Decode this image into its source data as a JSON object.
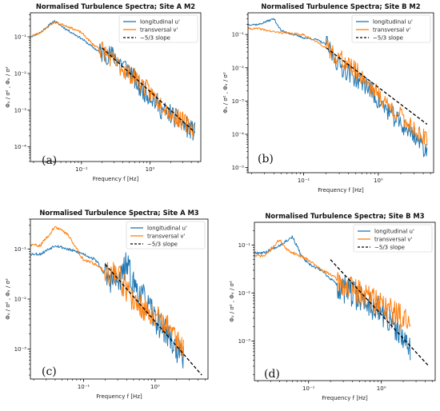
{
  "colors": {
    "longitudinal": "#1f77b4",
    "transversal": "#ff7f0e",
    "slope": "#000000"
  },
  "chart_data": [
    {
      "type": "line",
      "panel": "(a)",
      "title": "Normalised Turbulence Spectra; Site A M2",
      "xlabel": "Frequency  f  [Hz]",
      "ylabel": "Φᵤ / σ² , Φᵥ / σ²",
      "xscale": "log",
      "yscale": "log",
      "xlim": [
        0.018,
        5.5
      ],
      "ylim": [
        4e-05,
        0.45
      ],
      "xticks": [
        {
          "v": 0.1,
          "label": "10⁻¹"
        },
        {
          "v": 1,
          "label": "10⁰"
        }
      ],
      "yticks": [
        {
          "v": 0.0001,
          "label": "10⁻⁴"
        },
        {
          "v": 0.001,
          "label": "10⁻³"
        },
        {
          "v": 0.01,
          "label": "10⁻²"
        },
        {
          "v": 0.1,
          "label": "10⁻¹"
        }
      ],
      "legend": {
        "position": "top-right",
        "entries": [
          "longitudinal u'",
          "transversal v'",
          "−5/3 slope"
        ]
      },
      "series": [
        {
          "name": "longitudinal u'",
          "style": "solid",
          "seed": 11,
          "noise": 0.28,
          "fstart": 0.18,
          "anchors": [
            [
              0.018,
              0.1
            ],
            [
              0.025,
              0.13
            ],
            [
              0.04,
              0.27
            ],
            [
              0.06,
              0.16
            ],
            [
              0.1,
              0.09
            ],
            [
              0.15,
              0.05
            ],
            [
              0.2,
              0.035
            ],
            [
              0.3,
              0.03
            ],
            [
              0.5,
              0.012
            ],
            [
              0.7,
              0.004
            ],
            [
              1,
              0.0025
            ],
            [
              1.5,
              0.001
            ],
            [
              2,
              0.0008
            ],
            [
              3,
              0.0004
            ],
            [
              4.5,
              0.00025
            ]
          ]
        },
        {
          "name": "transversal v'",
          "style": "solid",
          "seed": 23,
          "noise": 0.26,
          "fstart": 0.18,
          "anchors": [
            [
              0.018,
              0.1
            ],
            [
              0.025,
              0.13
            ],
            [
              0.04,
              0.25
            ],
            [
              0.06,
              0.2
            ],
            [
              0.1,
              0.13
            ],
            [
              0.15,
              0.06
            ],
            [
              0.2,
              0.045
            ],
            [
              0.3,
              0.02
            ],
            [
              0.5,
              0.01
            ],
            [
              0.7,
              0.006
            ],
            [
              1,
              0.003
            ],
            [
              1.5,
              0.0015
            ],
            [
              2,
              0.0008
            ],
            [
              3,
              0.0005
            ],
            [
              4.5,
              0.0003
            ]
          ]
        },
        {
          "name": "−5/3 slope",
          "style": "dashed",
          "x": [
            0.2,
            4.5
          ],
          "y": [
            0.05,
            0.00025
          ]
        }
      ]
    },
    {
      "type": "line",
      "panel": "(b)",
      "title": "Normalised Turbulence Spectra; Site B M2",
      "xlabel": "Frequency  f  [Hz]",
      "ylabel": "Φᵤ / σ² , Φᵥ / σ²",
      "xscale": "log",
      "yscale": "log",
      "xlim": [
        0.018,
        5.5
      ],
      "ylim": [
        7e-06,
        0.45
      ],
      "xticks": [
        {
          "v": 0.1,
          "label": "10⁻¹"
        },
        {
          "v": 1,
          "label": "10⁰"
        }
      ],
      "yticks": [
        {
          "v": 1e-05,
          "label": "10⁻⁵"
        },
        {
          "v": 0.0001,
          "label": "10⁻⁴"
        },
        {
          "v": 0.001,
          "label": "10⁻³"
        },
        {
          "v": 0.01,
          "label": "10⁻²"
        },
        {
          "v": 0.1,
          "label": "10⁻¹"
        }
      ],
      "legend": {
        "position": "top-right",
        "entries": [
          "longitudinal u'",
          "transversal v'",
          "−5/3 slope"
        ]
      },
      "series": [
        {
          "name": "longitudinal u'",
          "style": "solid",
          "seed": 37,
          "noise": 0.3,
          "fstart": 0.2,
          "anchors": [
            [
              0.018,
              0.2
            ],
            [
              0.025,
              0.2
            ],
            [
              0.04,
              0.3
            ],
            [
              0.05,
              0.13
            ],
            [
              0.1,
              0.08
            ],
            [
              0.15,
              0.07
            ],
            [
              0.2,
              0.05
            ],
            [
              0.3,
              0.012
            ],
            [
              0.5,
              0.005
            ],
            [
              0.7,
              0.003
            ],
            [
              1,
              0.001
            ],
            [
              1.5,
              0.0004
            ],
            [
              2,
              0.0002
            ],
            [
              3,
              0.0001
            ],
            [
              4.5,
              3e-05
            ]
          ]
        },
        {
          "name": "transversal v'",
          "style": "solid",
          "seed": 41,
          "noise": 0.28,
          "fstart": 0.2,
          "anchors": [
            [
              0.018,
              0.15
            ],
            [
              0.025,
              0.15
            ],
            [
              0.04,
              0.12
            ],
            [
              0.06,
              0.11
            ],
            [
              0.1,
              0.1
            ],
            [
              0.15,
              0.06
            ],
            [
              0.2,
              0.04
            ],
            [
              0.3,
              0.02
            ],
            [
              0.5,
              0.008
            ],
            [
              0.7,
              0.004
            ],
            [
              1,
              0.0015
            ],
            [
              1.5,
              0.0006
            ],
            [
              2,
              0.00035
            ],
            [
              3,
              0.00015
            ],
            [
              4.5,
              6e-05
            ]
          ]
        },
        {
          "name": "−5/3 slope",
          "style": "dashed",
          "x": [
            0.2,
            4.5
          ],
          "y": [
            0.04,
            0.0002
          ]
        }
      ]
    },
    {
      "type": "line",
      "panel": "(c)",
      "title": "Normalised Turbulence Spectra; Site A M3",
      "xlabel": "Frequency  f  [Hz]",
      "ylabel": "Φᵤ / σ² , Φᵥ / σ²",
      "xscale": "log",
      "yscale": "log",
      "xlim": [
        0.018,
        5.5
      ],
      "ylim": [
        0.00025,
        0.4
      ],
      "xticks": [
        {
          "v": 0.1,
          "label": "10⁻¹"
        },
        {
          "v": 1,
          "label": "10⁰"
        }
      ],
      "yticks": [
        {
          "v": 0.001,
          "label": "10⁻³"
        },
        {
          "v": 0.01,
          "label": "10⁻²"
        },
        {
          "v": 0.1,
          "label": "10⁻¹"
        }
      ],
      "legend": {
        "position": "top-right",
        "entries": [
          "longitudinal u'",
          "transversal v'",
          "−5/3 slope"
        ]
      },
      "series": [
        {
          "name": "longitudinal u'",
          "style": "solid",
          "seed": 53,
          "noise": 0.28,
          "fstart": 0.2,
          "xend": 2.5,
          "anchors": [
            [
              0.018,
              0.08
            ],
            [
              0.025,
              0.08
            ],
            [
              0.04,
              0.12
            ],
            [
              0.06,
              0.1
            ],
            [
              0.1,
              0.08
            ],
            [
              0.15,
              0.06
            ],
            [
              0.2,
              0.03
            ],
            [
              0.3,
              0.02
            ],
            [
              0.4,
              0.05
            ],
            [
              0.5,
              0.02
            ],
            [
              0.7,
              0.01
            ],
            [
              1,
              0.004
            ],
            [
              1.5,
              0.002
            ],
            [
              2,
              0.001
            ],
            [
              2.5,
              0.0006
            ]
          ]
        },
        {
          "name": "transversal v'",
          "style": "solid",
          "seed": 59,
          "noise": 0.26,
          "fstart": 0.2,
          "xend": 2.5,
          "anchors": [
            [
              0.018,
              0.12
            ],
            [
              0.025,
              0.12
            ],
            [
              0.04,
              0.28
            ],
            [
              0.06,
              0.2
            ],
            [
              0.1,
              0.06
            ],
            [
              0.15,
              0.05
            ],
            [
              0.2,
              0.035
            ],
            [
              0.3,
              0.03
            ],
            [
              0.4,
              0.015
            ],
            [
              0.5,
              0.01
            ],
            [
              0.7,
              0.006
            ],
            [
              1,
              0.005
            ],
            [
              1.5,
              0.003
            ],
            [
              2,
              0.0015
            ],
            [
              2.5,
              0.001
            ]
          ]
        },
        {
          "name": "−5/3 slope",
          "style": "dashed",
          "x": [
            0.2,
            4.5
          ],
          "y": [
            0.05,
            0.0003
          ]
        }
      ]
    },
    {
      "type": "line",
      "panel": "(d)",
      "title": "Normalised Turbulence Spectra; Site B M3",
      "xlabel": "Frequency  f  [Hz]",
      "ylabel": "Φᵤ / σ² , Φᵥ / σ²",
      "xscale": "log",
      "yscale": "log",
      "xlim": [
        0.018,
        5.5
      ],
      "ylim": [
        0.00015,
        0.3
      ],
      "xticks": [
        {
          "v": 0.1,
          "label": "10⁻¹"
        },
        {
          "v": 1,
          "label": "10⁰"
        }
      ],
      "yticks": [
        {
          "v": 0.001,
          "label": "10⁻³"
        },
        {
          "v": 0.01,
          "label": "10⁻²"
        },
        {
          "v": 0.1,
          "label": "10⁻¹"
        }
      ],
      "legend": {
        "position": "top-right",
        "entries": [
          "longitudinal u'",
          "transversal v'",
          "−5/3 slope"
        ]
      },
      "series": [
        {
          "name": "longitudinal u'",
          "style": "solid",
          "seed": 67,
          "noise": 0.3,
          "fstart": 0.25,
          "xend": 2.5,
          "anchors": [
            [
              0.018,
              0.07
            ],
            [
              0.025,
              0.07
            ],
            [
              0.04,
              0.1
            ],
            [
              0.06,
              0.15
            ],
            [
              0.08,
              0.06
            ],
            [
              0.1,
              0.04
            ],
            [
              0.15,
              0.03
            ],
            [
              0.2,
              0.02
            ],
            [
              0.3,
              0.012
            ],
            [
              0.5,
              0.008
            ],
            [
              0.7,
              0.006
            ],
            [
              1,
              0.004
            ],
            [
              1.5,
              0.002
            ],
            [
              2,
              0.001
            ],
            [
              2.5,
              0.0008
            ]
          ]
        },
        {
          "name": "transversal v'",
          "style": "solid",
          "seed": 71,
          "noise": 0.28,
          "fstart": 0.25,
          "xend": 2.5,
          "anchors": [
            [
              0.018,
              0.06
            ],
            [
              0.025,
              0.06
            ],
            [
              0.04,
              0.13
            ],
            [
              0.05,
              0.08
            ],
            [
              0.1,
              0.05
            ],
            [
              0.15,
              0.03
            ],
            [
              0.2,
              0.025
            ],
            [
              0.3,
              0.015
            ],
            [
              0.5,
              0.01
            ],
            [
              0.7,
              0.008
            ],
            [
              1,
              0.006
            ],
            [
              1.5,
              0.004
            ],
            [
              2,
              0.003
            ],
            [
              2.5,
              0.002
            ]
          ]
        },
        {
          "name": "−5/3 slope",
          "style": "dashed",
          "x": [
            0.2,
            4.5
          ],
          "y": [
            0.05,
            0.0003
          ]
        }
      ]
    }
  ]
}
